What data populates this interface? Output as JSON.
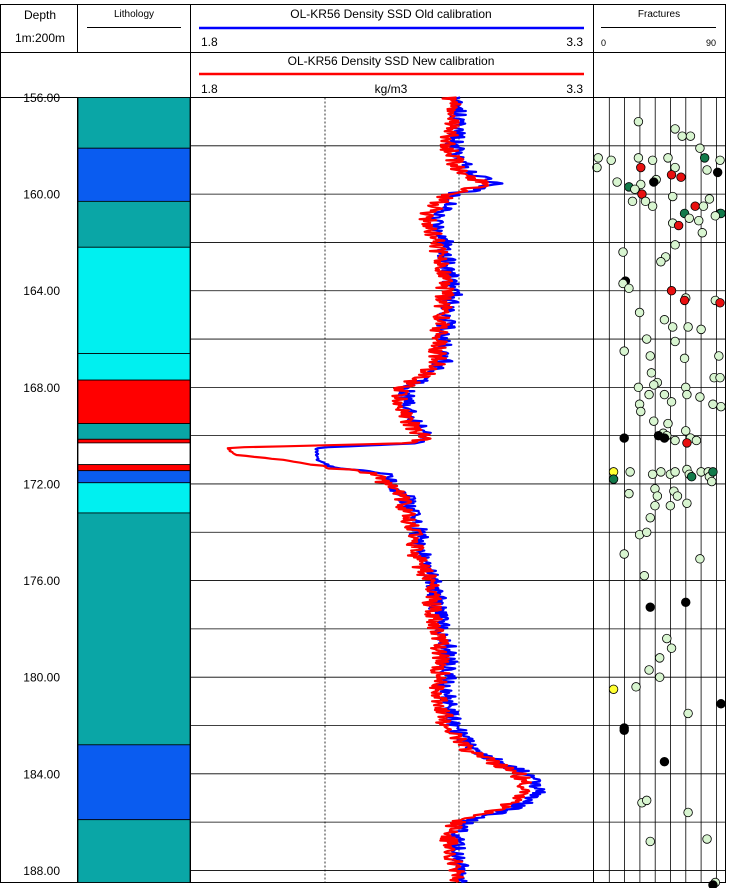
{
  "header": {
    "depth_title": "Depth",
    "scale": "1m:200m",
    "lithology_title": "Lithology",
    "fractures_title": "Fractures",
    "fractures_min": "0",
    "fractures_max": "90",
    "old_title": "OL-KR56 Density SSD Old calibration",
    "old_min": "1.8",
    "old_max": "3.3",
    "new_title": "OL-KR56 Density SSD New calibration",
    "new_min": "1.8",
    "new_max": "3.3",
    "unit": "kg/m3"
  },
  "colors": {
    "teal": "#0aa6a6",
    "blue": "#0a5cf0",
    "cyan": "#00f0f0",
    "red": "#ff0000",
    "white": "#ffffff",
    "old_line": "#0000ff",
    "new_line": "#ff0000",
    "frac_light": "#d8f5d0",
    "frac_dark_green": "#127a4a",
    "frac_red": "#e81010",
    "frac_black": "#000000",
    "frac_yellow": "#ffff33"
  },
  "chart_data": {
    "type": "line",
    "depth_range": [
      156,
      188.5
    ],
    "depth_tick_step": 4,
    "depth_ticks": [
      "156.00",
      "160.00",
      "164.00",
      "168.00",
      "172.00",
      "176.00",
      "180.00",
      "184.00",
      "188.00"
    ],
    "density_range": [
      1.8,
      3.3
    ],
    "density_grid": [
      2.3,
      2.8
    ],
    "lithology": [
      {
        "from": 156.0,
        "to": 158.1,
        "color": "teal"
      },
      {
        "from": 158.1,
        "to": 160.3,
        "color": "blue"
      },
      {
        "from": 160.3,
        "to": 162.2,
        "color": "teal"
      },
      {
        "from": 162.2,
        "to": 166.6,
        "color": "cyan"
      },
      {
        "from": 166.6,
        "to": 167.7,
        "color": "cyan"
      },
      {
        "from": 167.7,
        "to": 169.5,
        "color": "red"
      },
      {
        "from": 169.5,
        "to": 170.15,
        "color": "teal"
      },
      {
        "from": 170.15,
        "to": 170.3,
        "color": "red"
      },
      {
        "from": 170.3,
        "to": 171.2,
        "color": "white"
      },
      {
        "from": 171.2,
        "to": 171.45,
        "color": "red"
      },
      {
        "from": 171.45,
        "to": 171.95,
        "color": "blue"
      },
      {
        "from": 171.95,
        "to": 173.2,
        "color": "cyan"
      },
      {
        "from": 173.2,
        "to": 182.8,
        "color": "teal"
      },
      {
        "from": 182.8,
        "to": 185.9,
        "color": "blue"
      },
      {
        "from": 185.9,
        "to": 188.5,
        "color": "teal"
      }
    ],
    "series": [
      {
        "key": "old",
        "color_key": "old_line",
        "depth": [
          156,
          157,
          158,
          159,
          159.6,
          160,
          160.5,
          161,
          162,
          163,
          164,
          165,
          166,
          167,
          167.5,
          168,
          168.5,
          169,
          169.5,
          170,
          170.3,
          170.5,
          170.8,
          171,
          171.3,
          171.6,
          172,
          172.5,
          173,
          174,
          175,
          176,
          177,
          178,
          179,
          180,
          180.5,
          181,
          182,
          183,
          183.5,
          184,
          184.5,
          185,
          185.5,
          186,
          186.5,
          187,
          188,
          188.5
        ],
        "values": [
          2.79,
          2.8,
          2.78,
          2.83,
          2.94,
          2.78,
          2.75,
          2.71,
          2.75,
          2.76,
          2.78,
          2.76,
          2.74,
          2.74,
          2.69,
          2.62,
          2.6,
          2.62,
          2.64,
          2.68,
          2.68,
          2.27,
          2.27,
          2.27,
          2.33,
          2.52,
          2.55,
          2.6,
          2.62,
          2.65,
          2.66,
          2.71,
          2.72,
          2.74,
          2.76,
          2.76,
          2.74,
          2.76,
          2.78,
          2.86,
          2.95,
          3.05,
          3.1,
          3.08,
          2.98,
          2.82,
          2.79,
          2.79,
          2.81,
          2.8
        ]
      },
      {
        "key": "new",
        "color_key": "new_line",
        "depth": [
          156,
          157,
          158,
          159,
          159.6,
          160,
          160.5,
          161,
          162,
          163,
          164,
          165,
          166,
          167,
          167.5,
          168,
          168.5,
          169,
          169.5,
          170,
          170.3,
          170.5,
          170.8,
          171,
          171.3,
          171.6,
          172,
          172.5,
          173,
          174,
          175,
          176,
          177,
          178,
          179,
          180,
          180.5,
          181,
          182,
          183,
          183.5,
          184,
          184.5,
          185,
          185.5,
          186,
          186.5,
          187,
          188,
          188.5
        ],
        "values": [
          2.77,
          2.78,
          2.76,
          2.8,
          2.9,
          2.76,
          2.71,
          2.68,
          2.72,
          2.73,
          2.75,
          2.74,
          2.72,
          2.72,
          2.67,
          2.59,
          2.58,
          2.6,
          2.62,
          2.66,
          2.66,
          1.93,
          1.97,
          2.14,
          2.3,
          2.49,
          2.53,
          2.58,
          2.6,
          2.63,
          2.64,
          2.69,
          2.7,
          2.72,
          2.73,
          2.73,
          2.71,
          2.73,
          2.75,
          2.83,
          2.92,
          3.02,
          3.05,
          3.03,
          2.94,
          2.79,
          2.76,
          2.76,
          2.79,
          2.78
        ]
      }
    ],
    "fractures": [
      {
        "depth": 157.0,
        "dip": 35,
        "color": "frac_light"
      },
      {
        "depth": 157.3,
        "dip": 66,
        "color": "frac_light"
      },
      {
        "depth": 157.6,
        "dip": 72,
        "color": "frac_light"
      },
      {
        "depth": 157.6,
        "dip": 79,
        "color": "frac_light"
      },
      {
        "depth": 158.1,
        "dip": 87,
        "color": "frac_light"
      },
      {
        "depth": 158.5,
        "dip": 1,
        "color": "frac_light"
      },
      {
        "depth": 158.6,
        "dip": 12,
        "color": "frac_light"
      },
      {
        "depth": 158.5,
        "dip": 35,
        "color": "frac_light"
      },
      {
        "depth": 158.6,
        "dip": 47,
        "color": "frac_light"
      },
      {
        "depth": 158.5,
        "dip": 60,
        "color": "frac_light"
      },
      {
        "depth": 158.5,
        "dip": 91,
        "color": "frac_dark_green"
      },
      {
        "depth": 158.6,
        "dip": 104,
        "color": "frac_light"
      },
      {
        "depth": 158.9,
        "dip": 0,
        "color": "frac_light"
      },
      {
        "depth": 158.9,
        "dip": 37,
        "color": "frac_red"
      },
      {
        "depth": 158.9,
        "dip": 66,
        "color": "frac_light"
      },
      {
        "depth": 159.0,
        "dip": 93,
        "color": "frac_light"
      },
      {
        "depth": 159.1,
        "dip": 102,
        "color": "frac_black"
      },
      {
        "depth": 159.2,
        "dip": 63,
        "color": "frac_red"
      },
      {
        "depth": 159.3,
        "dip": 71,
        "color": "frac_red"
      },
      {
        "depth": 159.4,
        "dip": 50,
        "color": "frac_light"
      },
      {
        "depth": 159.5,
        "dip": 17,
        "color": "frac_light"
      },
      {
        "depth": 159.5,
        "dip": 48,
        "color": "frac_black"
      },
      {
        "depth": 159.6,
        "dip": 37,
        "color": "frac_light"
      },
      {
        "depth": 159.7,
        "dip": 27,
        "color": "frac_dark_green"
      },
      {
        "depth": 159.8,
        "dip": 32,
        "color": "frac_light"
      },
      {
        "depth": 160.0,
        "dip": 38,
        "color": "frac_red"
      },
      {
        "depth": 160.1,
        "dip": 64,
        "color": "frac_light"
      },
      {
        "depth": 160.2,
        "dip": 95,
        "color": "frac_light"
      },
      {
        "depth": 160.3,
        "dip": 30,
        "color": "frac_light"
      },
      {
        "depth": 160.3,
        "dip": 41,
        "color": "frac_light"
      },
      {
        "depth": 160.5,
        "dip": 47,
        "color": "frac_light"
      },
      {
        "depth": 160.5,
        "dip": 83,
        "color": "frac_red"
      },
      {
        "depth": 160.5,
        "dip": 90,
        "color": "frac_light"
      },
      {
        "depth": 160.8,
        "dip": 74,
        "color": "frac_dark_green"
      },
      {
        "depth": 160.8,
        "dip": 104,
        "color": "frac_light"
      },
      {
        "depth": 160.8,
        "dip": 112,
        "color": "frac_dark_green"
      },
      {
        "depth": 160.9,
        "dip": 100,
        "color": "frac_light"
      },
      {
        "depth": 161.0,
        "dip": 78,
        "color": "frac_light"
      },
      {
        "depth": 161.1,
        "dip": 86,
        "color": "frac_light"
      },
      {
        "depth": 161.2,
        "dip": 64,
        "color": "frac_light"
      },
      {
        "depth": 161.3,
        "dip": 69,
        "color": "frac_red"
      },
      {
        "depth": 161.6,
        "dip": 89,
        "color": "frac_light"
      },
      {
        "depth": 162.1,
        "dip": 66,
        "color": "frac_light"
      },
      {
        "depth": 162.4,
        "dip": 22,
        "color": "frac_light"
      },
      {
        "depth": 162.6,
        "dip": 58,
        "color": "frac_light"
      },
      {
        "depth": 162.8,
        "dip": 54,
        "color": "frac_light"
      },
      {
        "depth": 163.6,
        "dip": 24,
        "color": "frac_black"
      },
      {
        "depth": 163.7,
        "dip": 22,
        "color": "frac_light"
      },
      {
        "depth": 163.9,
        "dip": 27,
        "color": "frac_light"
      },
      {
        "depth": 164.0,
        "dip": 63,
        "color": "frac_red"
      },
      {
        "depth": 164.3,
        "dip": 75,
        "color": "frac_light"
      },
      {
        "depth": 164.4,
        "dip": 74,
        "color": "frac_red"
      },
      {
        "depth": 164.4,
        "dip": 100,
        "color": "frac_light"
      },
      {
        "depth": 164.5,
        "dip": 104,
        "color": "frac_red"
      },
      {
        "depth": 164.9,
        "dip": 36,
        "color": "frac_light"
      },
      {
        "depth": 165.2,
        "dip": 57,
        "color": "frac_light"
      },
      {
        "depth": 165.5,
        "dip": 64,
        "color": "frac_light"
      },
      {
        "depth": 165.5,
        "dip": 77,
        "color": "frac_light"
      },
      {
        "depth": 165.6,
        "dip": 88,
        "color": "frac_light"
      },
      {
        "depth": 166.0,
        "dip": 42,
        "color": "frac_light"
      },
      {
        "depth": 166.1,
        "dip": 66,
        "color": "frac_light"
      },
      {
        "depth": 166.5,
        "dip": 23,
        "color": "frac_light"
      },
      {
        "depth": 166.7,
        "dip": 45,
        "color": "frac_light"
      },
      {
        "depth": 166.8,
        "dip": 74,
        "color": "frac_light"
      },
      {
        "depth": 166.7,
        "dip": 103,
        "color": "frac_light"
      },
      {
        "depth": 167.4,
        "dip": 46,
        "color": "frac_light"
      },
      {
        "depth": 167.6,
        "dip": 99,
        "color": "frac_light"
      },
      {
        "depth": 167.6,
        "dip": 104,
        "color": "frac_light"
      },
      {
        "depth": 167.8,
        "dip": 51,
        "color": "frac_light"
      },
      {
        "depth": 167.9,
        "dip": 48,
        "color": "frac_light"
      },
      {
        "depth": 168.0,
        "dip": 35,
        "color": "frac_light"
      },
      {
        "depth": 168.0,
        "dip": 75,
        "color": "frac_light"
      },
      {
        "depth": 168.3,
        "dip": 44,
        "color": "frac_light"
      },
      {
        "depth": 168.3,
        "dip": 57,
        "color": "frac_light"
      },
      {
        "depth": 168.3,
        "dip": 76,
        "color": "frac_light"
      },
      {
        "depth": 168.4,
        "dip": 87,
        "color": "frac_light"
      },
      {
        "depth": 168.6,
        "dip": 63,
        "color": "frac_light"
      },
      {
        "depth": 168.7,
        "dip": 36,
        "color": "frac_light"
      },
      {
        "depth": 168.7,
        "dip": 98,
        "color": "frac_light"
      },
      {
        "depth": 168.8,
        "dip": 106,
        "color": "frac_light"
      },
      {
        "depth": 169.0,
        "dip": 37,
        "color": "frac_light"
      },
      {
        "depth": 169.4,
        "dip": 48,
        "color": "frac_light"
      },
      {
        "depth": 169.5,
        "dip": 60,
        "color": "frac_light"
      },
      {
        "depth": 169.8,
        "dip": 75,
        "color": "frac_light"
      },
      {
        "depth": 169.9,
        "dip": 56,
        "color": "frac_light"
      },
      {
        "depth": 170.0,
        "dip": 52,
        "color": "frac_black"
      },
      {
        "depth": 170.0,
        "dip": 59,
        "color": "frac_light"
      },
      {
        "depth": 170.1,
        "dip": 23,
        "color": "frac_black"
      },
      {
        "depth": 170.1,
        "dip": 57,
        "color": "frac_black"
      },
      {
        "depth": 170.2,
        "dip": 66,
        "color": "frac_light"
      },
      {
        "depth": 170.1,
        "dip": 79,
        "color": "frac_light"
      },
      {
        "depth": 170.2,
        "dip": 84,
        "color": "frac_light"
      },
      {
        "depth": 170.3,
        "dip": 76,
        "color": "frac_red"
      },
      {
        "depth": 171.5,
        "dip": 14,
        "color": "frac_yellow"
      },
      {
        "depth": 171.5,
        "dip": 28,
        "color": "frac_light"
      },
      {
        "depth": 171.6,
        "dip": 47,
        "color": "frac_light"
      },
      {
        "depth": 171.5,
        "dip": 54,
        "color": "frac_light"
      },
      {
        "depth": 171.6,
        "dip": 62,
        "color": "frac_light"
      },
      {
        "depth": 171.5,
        "dip": 66,
        "color": "frac_light"
      },
      {
        "depth": 171.4,
        "dip": 76,
        "color": "frac_light"
      },
      {
        "depth": 171.6,
        "dip": 78,
        "color": "frac_light"
      },
      {
        "depth": 171.7,
        "dip": 80,
        "color": "frac_dark_green"
      },
      {
        "depth": 171.5,
        "dip": 88,
        "color": "frac_light"
      },
      {
        "depth": 171.5,
        "dip": 94,
        "color": "frac_light"
      },
      {
        "depth": 171.7,
        "dip": 95,
        "color": "frac_light"
      },
      {
        "depth": 171.5,
        "dip": 98,
        "color": "frac_dark_green"
      },
      {
        "depth": 171.8,
        "dip": 14,
        "color": "frac_dark_green"
      },
      {
        "depth": 171.9,
        "dip": 97,
        "color": "frac_light"
      },
      {
        "depth": 172.2,
        "dip": 49,
        "color": "frac_light"
      },
      {
        "depth": 172.3,
        "dip": 65,
        "color": "frac_light"
      },
      {
        "depth": 172.4,
        "dip": 27,
        "color": "frac_light"
      },
      {
        "depth": 172.5,
        "dip": 51,
        "color": "frac_light"
      },
      {
        "depth": 172.5,
        "dip": 68,
        "color": "frac_light"
      },
      {
        "depth": 172.8,
        "dip": 76,
        "color": "frac_light"
      },
      {
        "depth": 172.9,
        "dip": 62,
        "color": "frac_light"
      },
      {
        "depth": 172.9,
        "dip": 49,
        "color": "frac_light"
      },
      {
        "depth": 173.4,
        "dip": 45,
        "color": "frac_light"
      },
      {
        "depth": 174.1,
        "dip": 36,
        "color": "frac_light"
      },
      {
        "depth": 174.0,
        "dip": 42,
        "color": "frac_light"
      },
      {
        "depth": 174.9,
        "dip": 23,
        "color": "frac_light"
      },
      {
        "depth": 175.1,
        "dip": 87,
        "color": "frac_light"
      },
      {
        "depth": 175.8,
        "dip": 40,
        "color": "frac_light"
      },
      {
        "depth": 177.1,
        "dip": 45,
        "color": "frac_black"
      },
      {
        "depth": 176.9,
        "dip": 75,
        "color": "frac_black"
      },
      {
        "depth": 178.4,
        "dip": 59,
        "color": "frac_light"
      },
      {
        "depth": 178.8,
        "dip": 63,
        "color": "frac_light"
      },
      {
        "depth": 179.2,
        "dip": 53,
        "color": "frac_light"
      },
      {
        "depth": 179.7,
        "dip": 44,
        "color": "frac_light"
      },
      {
        "depth": 180.0,
        "dip": 53,
        "color": "frac_light"
      },
      {
        "depth": 180.5,
        "dip": 14,
        "color": "frac_yellow"
      },
      {
        "depth": 180.4,
        "dip": 33,
        "color": "frac_light"
      },
      {
        "depth": 181.1,
        "dip": 117,
        "color": "frac_black"
      },
      {
        "depth": 181.5,
        "dip": 77,
        "color": "frac_light"
      },
      {
        "depth": 182.1,
        "dip": 23,
        "color": "frac_black"
      },
      {
        "depth": 182.2,
        "dip": 23,
        "color": "frac_black"
      },
      {
        "depth": 183.5,
        "dip": 57,
        "color": "frac_black"
      },
      {
        "depth": 185.2,
        "dip": 38,
        "color": "frac_light"
      },
      {
        "depth": 185.1,
        "dip": 42,
        "color": "frac_light"
      },
      {
        "depth": 185.6,
        "dip": 77,
        "color": "frac_light"
      },
      {
        "depth": 186.7,
        "dip": 93,
        "color": "frac_light"
      },
      {
        "depth": 186.8,
        "dip": 45,
        "color": "frac_light"
      },
      {
        "depth": 188.5,
        "dip": 100,
        "color": "frac_light"
      },
      {
        "depth": 188.6,
        "dip": 98,
        "color": "frac_black"
      }
    ]
  }
}
